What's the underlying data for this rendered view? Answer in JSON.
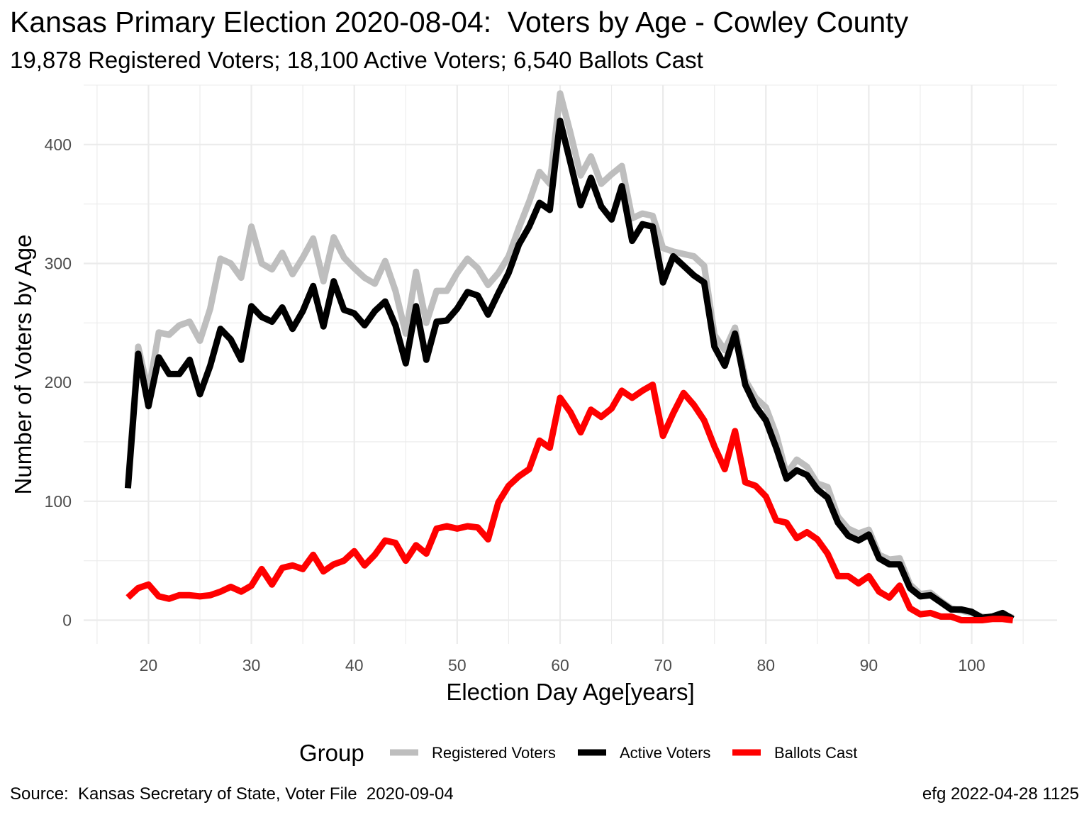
{
  "title": "Kansas Primary Election 2020-08-04:  Voters by Age - Cowley County",
  "subtitle": "19,878 Registered Voters; 18,100 Active Voters; 6,540 Ballots Cast",
  "caption_left": "Source:  Kansas Secretary of State, Voter File  2020-09-04",
  "caption_right": "efg 2022-04-28 1125",
  "chart_data": {
    "type": "line",
    "title": "Kansas Primary Election 2020-08-04:  Voters by Age - Cowley County",
    "subtitle": "19,878 Registered Voters; 18,100 Active Voters; 6,540 Ballots Cast",
    "xlabel": "Election Day Age[years]",
    "ylabel": "Number of Voters by Age",
    "xlim": [
      13.7,
      108.3
    ],
    "ylim": [
      -20,
      450
    ],
    "x_ticks": [
      20,
      30,
      40,
      50,
      60,
      70,
      80,
      90,
      100
    ],
    "y_ticks": [
      0,
      100,
      200,
      300,
      400
    ],
    "grid": true,
    "legend_title": "Group",
    "legend_position": "bottom",
    "x": [
      18,
      19,
      20,
      21,
      22,
      23,
      24,
      25,
      26,
      27,
      28,
      29,
      30,
      31,
      32,
      33,
      34,
      35,
      36,
      37,
      38,
      39,
      40,
      41,
      42,
      43,
      44,
      45,
      46,
      47,
      48,
      49,
      50,
      51,
      52,
      53,
      54,
      55,
      56,
      57,
      58,
      59,
      60,
      61,
      62,
      63,
      64,
      65,
      66,
      67,
      68,
      69,
      70,
      71,
      72,
      73,
      74,
      75,
      76,
      77,
      78,
      79,
      80,
      81,
      82,
      83,
      84,
      85,
      86,
      87,
      88,
      89,
      90,
      91,
      92,
      93,
      94,
      95,
      96,
      97,
      98,
      99,
      100,
      101,
      102,
      103,
      104
    ],
    "series": [
      {
        "name": "Registered Voters",
        "color": "#BEBEBE",
        "values": [
          112,
          230,
          192,
          242,
          240,
          248,
          251,
          235,
          262,
          304,
          300,
          288,
          331,
          300,
          295,
          309,
          291,
          305,
          321,
          285,
          322,
          305,
          296,
          288,
          283,
          302,
          277,
          241,
          293,
          250,
          277,
          277,
          292,
          304,
          296,
          282,
          292,
          306,
          330,
          352,
          377,
          367,
          443,
          410,
          374,
          390,
          367,
          375,
          382,
          338,
          342,
          340,
          313,
          310,
          308,
          306,
          298,
          240,
          227,
          246,
          202,
          187,
          179,
          156,
          123,
          135,
          129,
          115,
          112,
          87,
          77,
          73,
          76,
          55,
          51,
          52,
          30,
          22,
          23,
          16,
          10,
          8,
          6,
          3,
          2,
          5,
          2
        ]
      },
      {
        "name": "Active Voters",
        "color": "#000000",
        "values": [
          111,
          224,
          180,
          221,
          207,
          207,
          219,
          190,
          214,
          245,
          236,
          219,
          264,
          255,
          251,
          263,
          245,
          260,
          281,
          247,
          285,
          261,
          258,
          248,
          260,
          268,
          248,
          216,
          264,
          219,
          251,
          252,
          262,
          276,
          273,
          257,
          275,
          292,
          316,
          331,
          351,
          345,
          420,
          385,
          349,
          372,
          348,
          337,
          365,
          319,
          333,
          331,
          284,
          306,
          298,
          290,
          284,
          230,
          214,
          241,
          198,
          180,
          168,
          145,
          119,
          126,
          122,
          110,
          103,
          82,
          71,
          67,
          72,
          52,
          47,
          47,
          27,
          20,
          21,
          15,
          9,
          9,
          7,
          2,
          3,
          6,
          1
        ]
      },
      {
        "name": "Ballots Cast",
        "color": "#FF0000",
        "values": [
          19,
          27,
          30,
          20,
          18,
          21,
          21,
          20,
          21,
          24,
          28,
          24,
          29,
          43,
          30,
          44,
          46,
          43,
          55,
          41,
          47,
          50,
          58,
          46,
          55,
          67,
          65,
          50,
          63,
          56,
          77,
          79,
          77,
          79,
          78,
          68,
          99,
          113,
          121,
          127,
          151,
          145,
          187,
          175,
          158,
          177,
          171,
          178,
          193,
          187,
          193,
          198,
          155,
          174,
          191,
          181,
          168,
          146,
          127,
          159,
          116,
          113,
          104,
          84,
          82,
          69,
          74,
          68,
          56,
          37,
          37,
          31,
          37,
          24,
          19,
          29,
          10,
          5,
          6,
          3,
          3,
          0,
          0,
          0,
          1,
          1,
          0
        ]
      }
    ]
  }
}
